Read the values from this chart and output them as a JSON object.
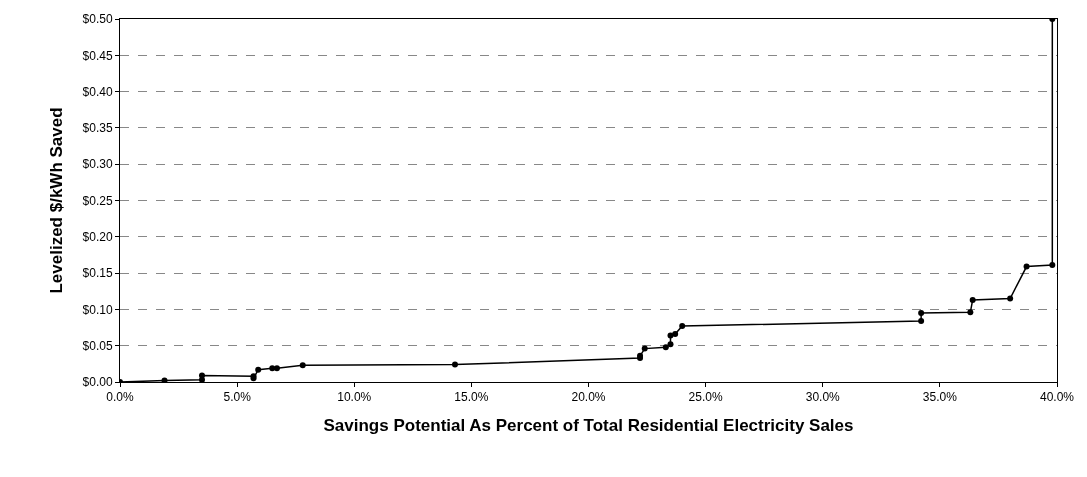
{
  "chart_data": {
    "type": "line",
    "xlabel": "Savings Potential As Percent of Total Residential Electricity Sales",
    "ylabel": "Levelized $/kWh Saved",
    "x": [
      0,
      1.9,
      3.5,
      3.5,
      5.7,
      5.7,
      5.9,
      6.5,
      6.7,
      7.8,
      14.3,
      22.2,
      22.2,
      22.4,
      23.3,
      23.5,
      23.5,
      23.7,
      24.0,
      34.2,
      34.2,
      36.3,
      36.4,
      38.0,
      38.7,
      39.8,
      39.8
    ],
    "series": [
      {
        "color": "#000000",
        "values": [
          0,
          0.002,
          0.003,
          0.009,
          0.008,
          0.005,
          0.017,
          0.019,
          0.019,
          0.023,
          0.024,
          0.033,
          0.036,
          0.046,
          0.048,
          0.052,
          0.064,
          0.066,
          0.077,
          0.084,
          0.095,
          0.096,
          0.113,
          0.115,
          0.159,
          0.161,
          0.5
        ]
      }
    ],
    "xlim": [
      0,
      40
    ],
    "ylim": [
      0,
      0.5
    ],
    "xticks": [
      {
        "value": 0,
        "label": "0.0%"
      },
      {
        "value": 5,
        "label": "5.0%"
      },
      {
        "value": 10,
        "label": "10.0%"
      },
      {
        "value": 15,
        "label": "15.0%"
      },
      {
        "value": 20,
        "label": "20.0%"
      },
      {
        "value": 25,
        "label": "25.0%"
      },
      {
        "value": 30,
        "label": "30.0%"
      },
      {
        "value": 35,
        "label": "35.0%"
      },
      {
        "value": 40,
        "label": "40.0%"
      }
    ],
    "yticks": [
      {
        "value": 0,
        "label": "$0.00"
      },
      {
        "value": 0.05,
        "label": "$0.05"
      },
      {
        "value": 0.1,
        "label": "$0.10"
      },
      {
        "value": 0.15,
        "label": "$0.15"
      },
      {
        "value": 0.2,
        "label": "$0.20"
      },
      {
        "value": 0.25,
        "label": "$0.25"
      },
      {
        "value": 0.3,
        "label": "$0.30"
      },
      {
        "value": 0.35,
        "label": "$0.35"
      },
      {
        "value": 0.4,
        "label": "$0.40"
      },
      {
        "value": 0.45,
        "label": "$0.45"
      },
      {
        "value": 0.5,
        "label": "$0.50"
      }
    ],
    "grid": "y",
    "marker": "circle",
    "line_style": "solid"
  }
}
